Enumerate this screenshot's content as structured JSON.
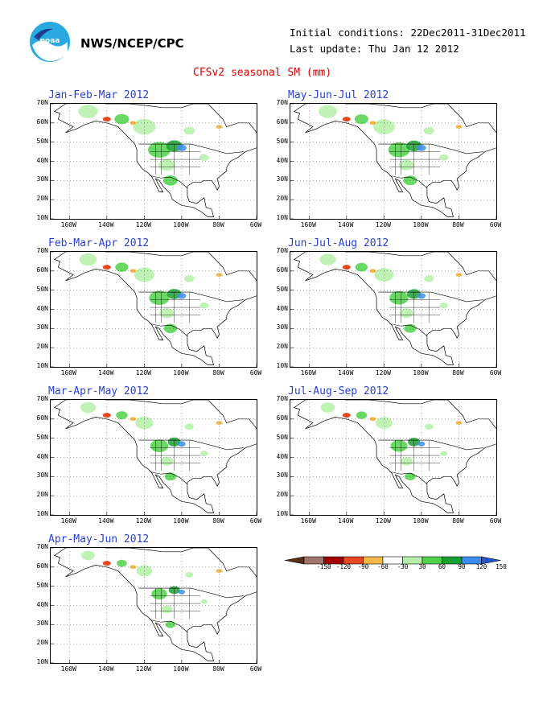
{
  "header": {
    "agency": "NWS/NCEP/CPC",
    "initial_conditions": "Initial conditions: 22Dec2011-31Dec2011",
    "last_update": "Last update: Thu Jan 12 2012",
    "title": "CFSv2 seasonal SM (mm)"
  },
  "panels": [
    {
      "title": "Jan-Feb-Mar 2012",
      "col": 0,
      "row": 0
    },
    {
      "title": "May-Jun-Jul 2012",
      "col": 1,
      "row": 0
    },
    {
      "title": "Feb-Mar-Apr 2012",
      "col": 0,
      "row": 1
    },
    {
      "title": "Jun-Jul-Aug 2012",
      "col": 1,
      "row": 1
    },
    {
      "title": "Mar-Apr-May 2012",
      "col": 0,
      "row": 2
    },
    {
      "title": "Jul-Aug-Sep 2012",
      "col": 1,
      "row": 2
    },
    {
      "title": "Apr-May-Jun 2012",
      "col": 0,
      "row": 3
    }
  ],
  "axes": {
    "lat_labels": [
      "70N",
      "60N",
      "50N",
      "40N",
      "30N",
      "20N",
      "10N"
    ],
    "lon_labels": [
      "160W",
      "140W",
      "120W",
      "100W",
      "80W",
      "60W"
    ]
  },
  "colorbar": {
    "labels": [
      "-150",
      "-120",
      "-90",
      "-60",
      "-30",
      "30",
      "60",
      "90",
      "120",
      "150"
    ],
    "colors": [
      "#5a2e1c",
      "#a0756b",
      "#a00000",
      "#e8481f",
      "#f5b84a",
      "#ffffff",
      "#b6f0a8",
      "#4fd14a",
      "#1a9f32",
      "#3b8ef0",
      "#2255c8"
    ]
  }
}
